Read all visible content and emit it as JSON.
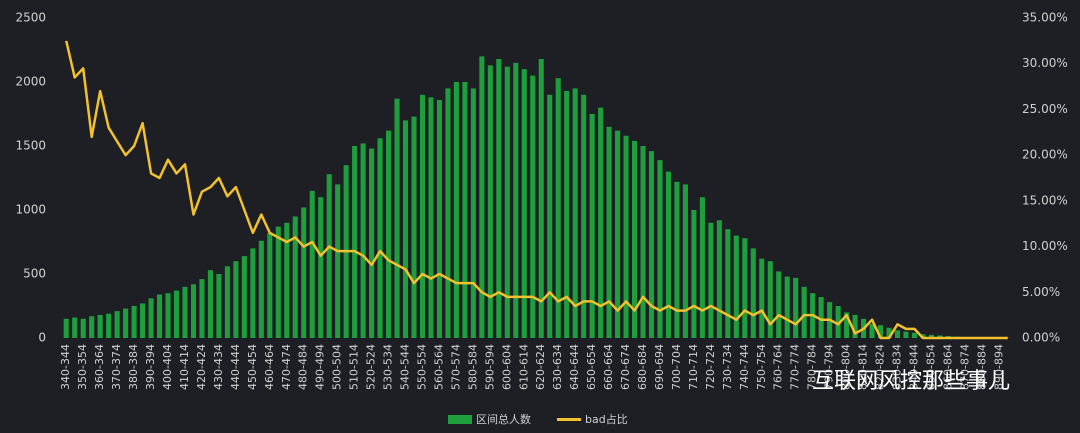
{
  "chart_data": {
    "type": "bar_line",
    "categories": [
      "340-344",
      null,
      "350-354",
      null,
      "360-364",
      null,
      "370-374",
      null,
      "380-384",
      null,
      "390-394",
      null,
      "400-404",
      null,
      "410-414",
      null,
      "420-424",
      null,
      "430-434",
      null,
      "440-444",
      null,
      "450-454",
      null,
      "460-464",
      null,
      "470-474",
      null,
      "480-484",
      null,
      "490-494",
      null,
      "500-504",
      null,
      "510-514",
      null,
      "520-524",
      null,
      "530-534",
      null,
      "540-544",
      null,
      "550-554",
      null,
      "560-564",
      null,
      "570-574",
      null,
      "580-584",
      null,
      "590-594",
      null,
      "600-604",
      null,
      "610-614",
      null,
      "620-624",
      null,
      "630-634",
      null,
      "640-644",
      null,
      "650-654",
      null,
      "660-664",
      null,
      "670-674",
      null,
      "680-684",
      null,
      "690-694",
      null,
      "700-704",
      null,
      "710-714",
      null,
      "720-724",
      null,
      "730-734",
      null,
      "740-744",
      null,
      "750-754",
      null,
      "760-764",
      null,
      "770-774",
      null,
      "780-784",
      null,
      "790-794",
      null,
      "800-804",
      null,
      "810-814",
      null,
      "820-824",
      null,
      "830-834",
      null,
      "840-844",
      null,
      "850-854",
      null,
      "860-864",
      null,
      "870-874",
      null,
      "880-884",
      null,
      "890-894",
      null
    ],
    "series": [
      {
        "name": "区间总人数",
        "color": "#1e9e3c",
        "values": [
          150,
          160,
          150,
          170,
          180,
          190,
          210,
          230,
          250,
          270,
          310,
          340,
          350,
          370,
          400,
          420,
          460,
          530,
          500,
          560,
          600,
          640,
          700,
          760,
          820,
          870,
          900,
          950,
          1020,
          1150,
          1100,
          1280,
          1200,
          1350,
          1500,
          1520,
          1480,
          1560,
          1620,
          1870,
          1700,
          1730,
          1900,
          1880,
          1860,
          1950,
          2000,
          2000,
          1950,
          2200,
          2130,
          2180,
          2120,
          2150,
          2100,
          2050,
          2180,
          1900,
          2030,
          1930,
          1950,
          1900,
          1750,
          1800,
          1650,
          1620,
          1580,
          1540,
          1500,
          1460,
          1390,
          1300,
          1220,
          1200,
          1000,
          1100,
          900,
          920,
          850,
          800,
          780,
          700,
          620,
          600,
          520,
          480,
          470,
          400,
          350,
          320,
          280,
          250,
          200,
          180,
          150,
          110,
          100,
          80,
          60,
          50,
          40,
          30,
          25,
          20,
          15,
          10,
          8,
          5,
          5,
          3,
          2,
          2
        ]
      },
      {
        "name": "bad占比",
        "color": "#f2c12e",
        "axis": "y2",
        "values": [
          32.5,
          28.5,
          29.5,
          22,
          27,
          23,
          21.5,
          20,
          21,
          23.5,
          18,
          17.5,
          19.5,
          18,
          19,
          13.5,
          16,
          16.5,
          17.5,
          15.5,
          16.5,
          14,
          11.5,
          13.5,
          11.5,
          11,
          10.5,
          11,
          10,
          10.5,
          9,
          10,
          9.5,
          9.5,
          9.5,
          9,
          8,
          9.5,
          8.5,
          8,
          7.5,
          6,
          7,
          6.5,
          7,
          6.5,
          6,
          6,
          6,
          5,
          4.5,
          5,
          4.5,
          4.5,
          4.5,
          4.5,
          4,
          5,
          4,
          4.5,
          3.5,
          4,
          4,
          3.5,
          4,
          3,
          4,
          3,
          4.5,
          3.5,
          3,
          3.5,
          3,
          3,
          3.5,
          3,
          3.5,
          3,
          2.5,
          2,
          3,
          2.5,
          3,
          1.5,
          2.5,
          2,
          1.5,
          2.5,
          2.5,
          2,
          2,
          1.5,
          2.5,
          0.5,
          1,
          2,
          0,
          0,
          1.5,
          1,
          1,
          0,
          0,
          0,
          0,
          0,
          0,
          0,
          0,
          0,
          0,
          0
        ]
      }
    ],
    "ylim": [
      0,
      2500
    ],
    "yticks": [
      0,
      500,
      1000,
      1500,
      2000,
      2500
    ],
    "y2lim": [
      0,
      35
    ],
    "y2ticks": [
      {
        "value": 0,
        "label": "0.00%"
      },
      {
        "value": 5,
        "label": "5.00%"
      },
      {
        "value": 10,
        "label": "10.00%"
      },
      {
        "value": 15,
        "label": "15.00%"
      },
      {
        "value": 20,
        "label": "20.00%"
      },
      {
        "value": 25,
        "label": "25.00%"
      },
      {
        "value": 30,
        "label": "30.00%"
      },
      {
        "value": 35,
        "label": "35.00%"
      }
    ],
    "legend": "bottom",
    "watermark": "互联网风控那些事儿"
  }
}
